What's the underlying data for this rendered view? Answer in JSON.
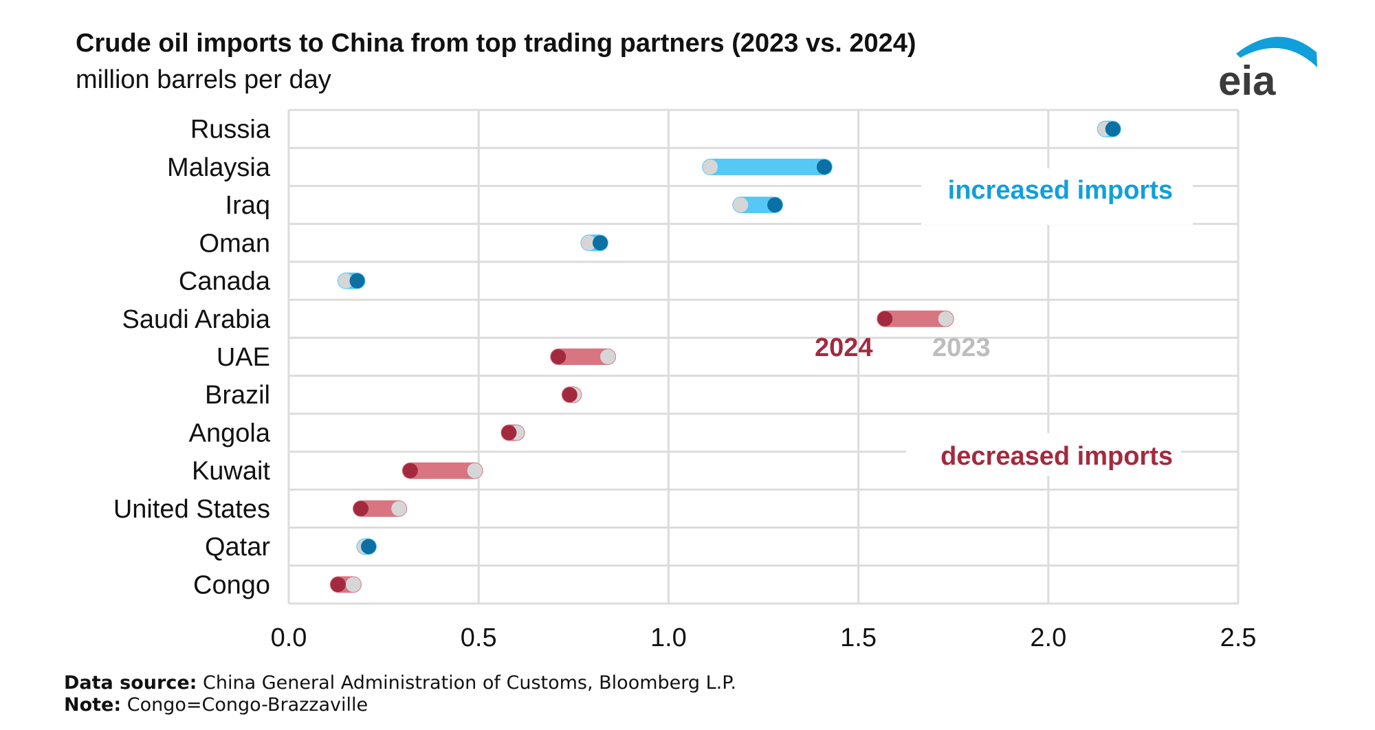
{
  "header": {
    "title": "Crude oil imports to China from top trading partners (2023 vs. 2024)",
    "subtitle": "million barrels per day",
    "logo_text": "eia"
  },
  "footer": {
    "source_label": "Data source:",
    "source_text": "China General Administration of Customs, Bloomberg L.P.",
    "note_label": "Note:",
    "note_text": "Congo=Congo-Brazzaville"
  },
  "colors": {
    "increase_bar": "#55c8f6",
    "increase_dot_2024": "#0b70a4",
    "decrease_bar": "#d97580",
    "decrease_dot_2024": "#a32a3e",
    "dot_2023": "#d6d6d6",
    "increase_text": "#119fdc",
    "decrease_text": "#a32a3e",
    "gray_text": "#bdbdbd",
    "grid": "#dcdcdc"
  },
  "chart_data": {
    "type": "dumbbell",
    "title": "Crude oil imports to China from top trading partners (2023 vs. 2024)",
    "ylabel": "",
    "xlabel": "",
    "unit": "million barrels per day",
    "xlim": [
      0,
      2.5
    ],
    "xticks": [
      "0.0",
      "0.5",
      "1.0",
      "1.5",
      "2.0",
      "2.5"
    ],
    "grid": true,
    "categories": [
      "Russia",
      "Malaysia",
      "Iraq",
      "Oman",
      "Canada",
      "Saudi Arabia",
      "UAE",
      "Brazil",
      "Angola",
      "Kuwait",
      "United States",
      "Qatar",
      "Congo"
    ],
    "series": [
      {
        "name": "2023",
        "values": [
          2.15,
          1.11,
          1.19,
          0.79,
          0.15,
          1.73,
          0.84,
          0.75,
          0.6,
          0.49,
          0.29,
          0.2,
          0.17
        ]
      },
      {
        "name": "2024",
        "values": [
          2.17,
          1.41,
          1.28,
          0.82,
          0.18,
          1.57,
          0.71,
          0.74,
          0.58,
          0.32,
          0.19,
          0.21,
          0.13
        ]
      }
    ],
    "annotations": {
      "increase": "increased imports",
      "decrease": "decreased imports",
      "legend_2024": "2024",
      "legend_2023": "2023"
    }
  }
}
